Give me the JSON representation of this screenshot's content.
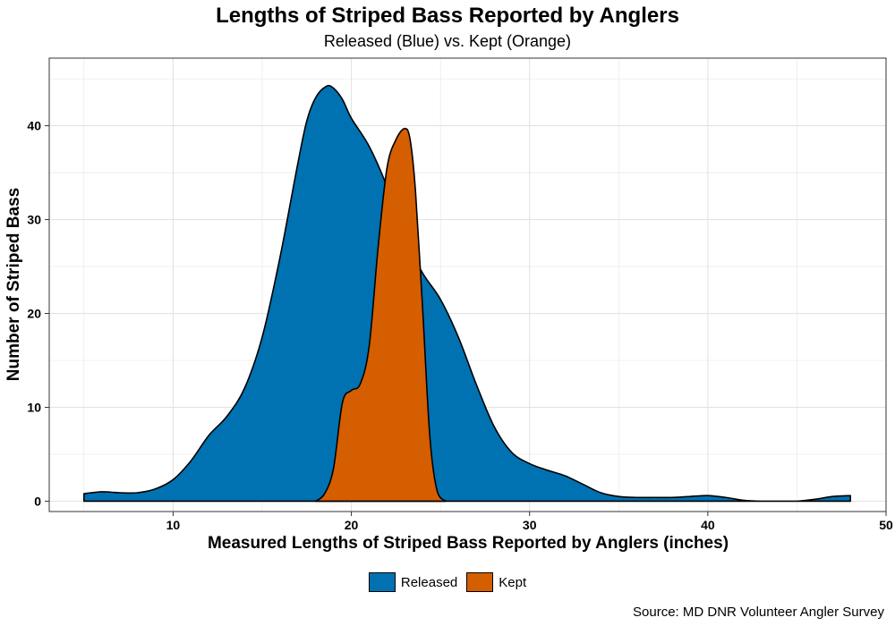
{
  "colors": {
    "released": "#0072B2",
    "kept": "#D55E00",
    "grid": "#e3e3e3",
    "outline": "#000000"
  },
  "chart_data": {
    "type": "area",
    "title": "Lengths of Striped Bass Reported by Anglers",
    "subtitle": "Released (Blue) vs. Kept (Orange)",
    "xlabel": "Measured Lengths of Striped Bass Reported by Anglers (inches)",
    "ylabel": "Number of Striped Bass",
    "xlim": [
      5,
      48
    ],
    "ylim": [
      0,
      44.2
    ],
    "x_ticks": [
      10,
      20,
      30,
      40,
      50
    ],
    "y_ticks": [
      0,
      10,
      20,
      30,
      40
    ],
    "grid": true,
    "legend_position": "bottom",
    "series": [
      {
        "name": "Released",
        "color": "#0072B2",
        "points": [
          [
            5,
            0.8
          ],
          [
            6,
            1.0
          ],
          [
            7,
            0.9
          ],
          [
            8,
            0.9
          ],
          [
            9,
            1.3
          ],
          [
            10,
            2.3
          ],
          [
            11,
            4.3
          ],
          [
            12,
            7.0
          ],
          [
            13,
            9.0
          ],
          [
            14,
            12.0
          ],
          [
            15,
            17.5
          ],
          [
            16,
            26.0
          ],
          [
            17,
            36.0
          ],
          [
            17.5,
            40.5
          ],
          [
            18,
            43.0
          ],
          [
            18.6,
            44.2
          ],
          [
            19,
            44.0
          ],
          [
            19.5,
            42.8
          ],
          [
            20,
            40.8
          ],
          [
            21,
            37.8
          ],
          [
            22,
            33.5
          ],
          [
            23,
            28.0
          ],
          [
            24,
            24.3
          ],
          [
            25,
            21.5
          ],
          [
            26,
            17.5
          ],
          [
            27,
            12.5
          ],
          [
            28,
            8.0
          ],
          [
            29,
            5.2
          ],
          [
            30,
            4.0
          ],
          [
            31,
            3.3
          ],
          [
            32,
            2.7
          ],
          [
            33,
            1.8
          ],
          [
            34,
            0.9
          ],
          [
            35,
            0.5
          ],
          [
            36,
            0.4
          ],
          [
            37,
            0.4
          ],
          [
            38,
            0.4
          ],
          [
            39,
            0.5
          ],
          [
            40,
            0.6
          ],
          [
            41,
            0.4
          ],
          [
            42,
            0.1
          ],
          [
            43,
            0.0
          ],
          [
            44,
            0.0
          ],
          [
            45,
            0.0
          ],
          [
            46,
            0.2
          ],
          [
            47,
            0.5
          ],
          [
            48,
            0.6
          ]
        ]
      },
      {
        "name": "Kept",
        "color": "#D55E00",
        "points": [
          [
            18,
            0.0
          ],
          [
            18.5,
            0.8
          ],
          [
            19,
            3.5
          ],
          [
            19.5,
            10.5
          ],
          [
            20,
            11.8
          ],
          [
            20.5,
            12.5
          ],
          [
            21,
            16.5
          ],
          [
            21.5,
            27.0
          ],
          [
            22,
            35.5
          ],
          [
            22.5,
            38.5
          ],
          [
            23,
            39.7
          ],
          [
            23.3,
            38.5
          ],
          [
            23.6,
            33.0
          ],
          [
            24,
            20.5
          ],
          [
            24.4,
            7.0
          ],
          [
            24.8,
            1.2
          ],
          [
            25.3,
            0.0
          ]
        ]
      }
    ],
    "legend": [
      "Released",
      "Kept"
    ],
    "source_note": "Source: MD DNR Volunteer Angler Survey"
  }
}
